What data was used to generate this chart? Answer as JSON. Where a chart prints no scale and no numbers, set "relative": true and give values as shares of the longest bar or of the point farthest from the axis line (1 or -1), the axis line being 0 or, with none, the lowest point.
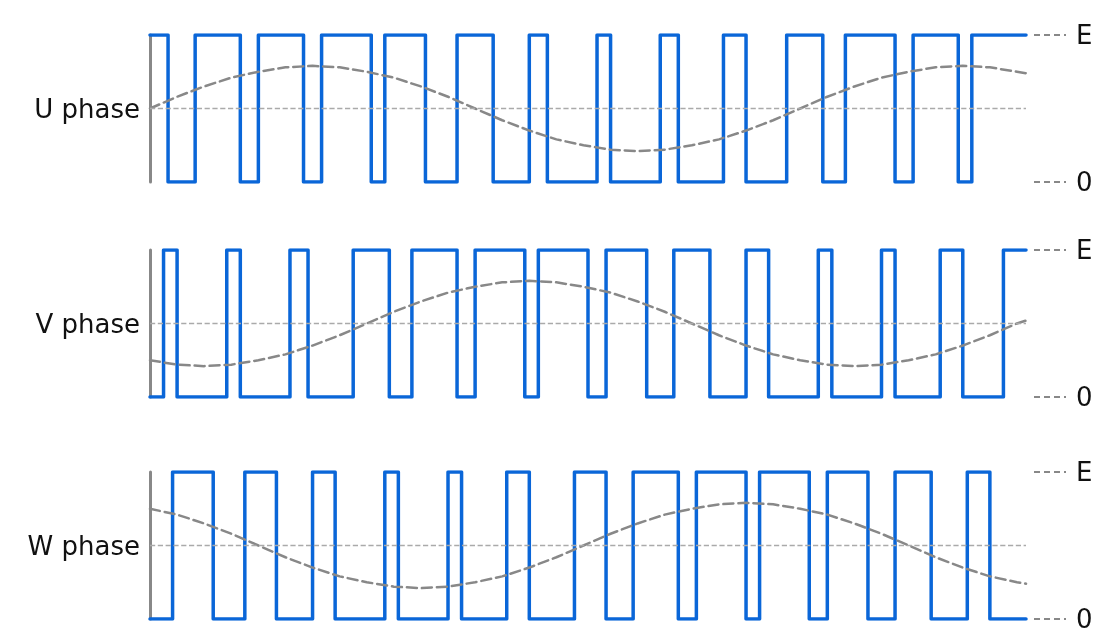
{
  "chart_data": [
    {
      "type": "step",
      "ylabel": "U phase",
      "relative": true,
      "annotations": [
        "E",
        "0"
      ],
      "categories": [
        null,
        null,
        null,
        null,
        null,
        null,
        null,
        null,
        null,
        null,
        null,
        null,
        null,
        null,
        null,
        null,
        null,
        null,
        null,
        null,
        null,
        null,
        null,
        null,
        null,
        null,
        null,
        null,
        null,
        null,
        null,
        null,
        null,
        null,
        null,
        null,
        null,
        null,
        null,
        null,
        null,
        null,
        null,
        null,
        null,
        null,
        null,
        null,
        null,
        null,
        null,
        null,
        null,
        null,
        null,
        null,
        null,
        null,
        null,
        null,
        null,
        null,
        null,
        null,
        null,
        null,
        null,
        null,
        null,
        null,
        null,
        null,
        null,
        null,
        null,
        null,
        null,
        null,
        null,
        null,
        null,
        null,
        null,
        null,
        null,
        null,
        null,
        null,
        null,
        null,
        null,
        null,
        null,
        null,
        null,
        null,
        null,
        null,
        null,
        null,
        null,
        null,
        null,
        null,
        null,
        null,
        null,
        null,
        null,
        null,
        null,
        null,
        null,
        null,
        null,
        null,
        null,
        null,
        null,
        null,
        null,
        null,
        null,
        null,
        null,
        null,
        null,
        null,
        null,
        null,
        null,
        null,
        null,
        null,
        null,
        null,
        null,
        null,
        null,
        null,
        null,
        null,
        null,
        null,
        null,
        null,
        null,
        null,
        null,
        null,
        null,
        null,
        null,
        null,
        null,
        null,
        null,
        null,
        null,
        null,
        null,
        null,
        null,
        null,
        null,
        null,
        null,
        null,
        null,
        null,
        null,
        null,
        null,
        null,
        null,
        null,
        null,
        null,
        null,
        null,
        null,
        null,
        null,
        null,
        null,
        null,
        null,
        null,
        null,
        null,
        null,
        null,
        null,
        null,
        null
      ],
      "ref_lines": [
        {
          "axis": "y",
          "value": 0.5,
          "color": "#aaaaaa",
          "line_style": "dashed"
        }
      ],
      "series": [
        {
          "color": "#0a66d8",
          "values": [
            1,
            1,
            1,
            1,
            0,
            0,
            0,
            0,
            0,
            0,
            1,
            1,
            1,
            1,
            1,
            1,
            1,
            1,
            1,
            1,
            0,
            0,
            0,
            0,
            1,
            1,
            1,
            1,
            1,
            1,
            1,
            1,
            1,
            1,
            0,
            0,
            0,
            0,
            1,
            1,
            1,
            1,
            1,
            1,
            1,
            1,
            1,
            1,
            1,
            0,
            0,
            0,
            1,
            1,
            1,
            1,
            1,
            1,
            1,
            1,
            1,
            0,
            0,
            0,
            0,
            0,
            0,
            0,
            1,
            1,
            1,
            1,
            1,
            1,
            1,
            1,
            0,
            0,
            0,
            0,
            0,
            0,
            0,
            0,
            1,
            1,
            1,
            1,
            0,
            0,
            0,
            0,
            0,
            0,
            0,
            0,
            0,
            0,
            0,
            1,
            1,
            1,
            0,
            0,
            0,
            0,
            0,
            0,
            0,
            0,
            0,
            0,
            0,
            1,
            1,
            1,
            1,
            0,
            0,
            0,
            0,
            0,
            0,
            0,
            0,
            0,
            0,
            1,
            1,
            1,
            1,
            1,
            0,
            0,
            0,
            0,
            0,
            0,
            0,
            0,
            0,
            1,
            1,
            1,
            1,
            1,
            1,
            1,
            1,
            0,
            0,
            0,
            0,
            0,
            1,
            1,
            1,
            1,
            1,
            1,
            1,
            1,
            1,
            1,
            1,
            0,
            0,
            0,
            0,
            1,
            1,
            1,
            1,
            1,
            1,
            1,
            1,
            1,
            1,
            0,
            0,
            0,
            1,
            1,
            1,
            1,
            1,
            1,
            1,
            1,
            1,
            1,
            1,
            1,
            1
          ]
        },
        {
          "type": "line",
          "color": "#888888",
          "line_style": "dashed",
          "values": [
            0.5,
            null,
            null,
            null,
            null,
            null,
            0.58,
            null,
            null,
            null,
            null,
            null,
            0.65,
            null,
            null,
            null,
            null,
            null,
            0.71,
            null,
            null,
            null,
            null,
            null,
            0.75,
            null,
            null,
            null,
            null,
            null,
            0.78,
            null,
            null,
            null,
            null,
            null,
            0.79,
            null,
            null,
            null,
            null,
            null,
            0.78,
            null,
            null,
            null,
            null,
            null,
            0.75,
            null,
            null,
            null,
            null,
            null,
            0.71,
            null,
            null,
            null,
            null,
            null,
            0.65,
            null,
            null,
            null,
            null,
            null,
            0.58,
            null,
            null,
            null,
            null,
            null,
            0.5,
            null,
            null,
            null,
            null,
            null,
            0.42,
            null,
            null,
            null,
            null,
            null,
            0.35,
            null,
            null,
            null,
            null,
            null,
            0.29,
            null,
            null,
            null,
            null,
            null,
            0.25,
            null,
            null,
            null,
            null,
            null,
            0.22,
            null,
            null,
            null,
            null,
            null,
            0.21,
            null,
            null,
            null,
            null,
            null,
            0.22,
            null,
            null,
            null,
            null,
            null,
            0.25,
            null,
            null,
            null,
            null,
            null,
            0.29,
            null,
            null,
            null,
            null,
            null,
            0.35,
            null,
            null,
            null,
            null,
            null,
            0.42,
            null,
            null,
            null,
            null,
            null,
            0.5,
            null,
            null,
            null,
            null,
            null,
            0.58,
            null,
            null,
            null,
            null,
            null,
            0.65,
            null,
            null,
            null,
            null,
            null,
            0.71,
            null,
            null,
            null,
            null,
            null,
            0.75,
            null,
            null,
            null,
            null,
            null,
            0.78,
            null,
            null,
            null,
            null,
            null,
            0.79,
            null,
            null,
            null,
            null,
            null,
            0.78,
            null,
            null,
            null,
            null,
            null,
            0.75,
            null,
            0.74
          ]
        }
      ]
    },
    {
      "type": "step",
      "ylabel": "V phase",
      "relative": true,
      "annotations": [
        "E",
        "0"
      ],
      "categories": [
        null,
        null,
        null,
        null,
        null,
        null,
        null,
        null,
        null,
        null,
        null,
        null,
        null,
        null,
        null,
        null,
        null,
        null,
        null,
        null,
        null,
        null,
        null,
        null,
        null,
        null,
        null,
        null,
        null,
        null,
        null,
        null,
        null,
        null,
        null,
        null,
        null,
        null,
        null,
        null,
        null,
        null,
        null,
        null,
        null,
        null,
        null,
        null,
        null,
        null,
        null,
        null,
        null,
        null,
        null,
        null,
        null,
        null,
        null,
        null,
        null,
        null,
        null,
        null,
        null,
        null,
        null,
        null,
        null,
        null,
        null,
        null,
        null,
        null,
        null,
        null,
        null,
        null,
        null,
        null,
        null,
        null,
        null,
        null,
        null,
        null,
        null,
        null,
        null,
        null,
        null,
        null,
        null,
        null,
        null,
        null,
        null,
        null,
        null,
        null,
        null,
        null,
        null,
        null,
        null,
        null,
        null,
        null,
        null,
        null,
        null,
        null,
        null,
        null,
        null,
        null,
        null,
        null,
        null,
        null,
        null,
        null,
        null,
        null,
        null,
        null,
        null,
        null,
        null,
        null,
        null,
        null,
        null,
        null,
        null,
        null,
        null,
        null,
        null,
        null,
        null,
        null,
        null,
        null,
        null,
        null,
        null,
        null,
        null,
        null,
        null,
        null,
        null,
        null,
        null,
        null,
        null,
        null,
        null,
        null,
        null,
        null,
        null,
        null,
        null,
        null,
        null,
        null,
        null,
        null,
        null,
        null,
        null,
        null,
        null,
        null,
        null,
        null,
        null,
        null,
        null,
        null,
        null,
        null,
        null,
        null,
        null,
        null,
        null,
        null,
        null,
        null,
        null,
        null,
        null
      ],
      "ref_lines": [
        {
          "axis": "y",
          "value": 0.5,
          "color": "#aaaaaa",
          "line_style": "dashed"
        }
      ],
      "series": [
        {
          "color": "#0a66d8",
          "values": [
            0,
            0,
            0,
            1,
            1,
            1,
            0,
            0,
            0,
            0,
            0,
            0,
            0,
            0,
            0,
            0,
            0,
            1,
            1,
            1,
            0,
            0,
            0,
            0,
            0,
            0,
            0,
            0,
            0,
            0,
            0,
            1,
            1,
            1,
            1,
            0,
            0,
            0,
            0,
            0,
            0,
            0,
            0,
            0,
            0,
            1,
            1,
            1,
            1,
            1,
            1,
            1,
            1,
            0,
            0,
            0,
            0,
            0,
            1,
            1,
            1,
            1,
            1,
            1,
            1,
            1,
            1,
            1,
            0,
            0,
            0,
            0,
            1,
            1,
            1,
            1,
            1,
            1,
            1,
            1,
            1,
            1,
            1,
            0,
            0,
            0,
            1,
            1,
            1,
            1,
            1,
            1,
            1,
            1,
            1,
            1,
            1,
            0,
            0,
            0,
            0,
            1,
            1,
            1,
            1,
            1,
            1,
            1,
            1,
            1,
            0,
            0,
            0,
            0,
            0,
            0,
            1,
            1,
            1,
            1,
            1,
            1,
            1,
            1,
            0,
            0,
            0,
            0,
            0,
            0,
            0,
            0,
            1,
            1,
            1,
            1,
            1,
            0,
            0,
            0,
            0,
            0,
            0,
            0,
            0,
            0,
            0,
            0,
            1,
            1,
            1,
            0,
            0,
            0,
            0,
            0,
            0,
            0,
            0,
            0,
            0,
            0,
            1,
            1,
            1,
            0,
            0,
            0,
            0,
            0,
            0,
            0,
            0,
            0,
            0,
            1,
            1,
            1,
            1,
            1,
            0,
            0,
            0,
            0,
            0,
            0,
            0,
            0,
            0,
            1,
            1,
            1,
            1,
            1,
            1
          ]
        },
        {
          "type": "line",
          "color": "#888888",
          "line_style": "dashed",
          "values": [
            0.25,
            null,
            null,
            null,
            null,
            null,
            0.22,
            null,
            null,
            null,
            null,
            null,
            0.21,
            null,
            null,
            null,
            null,
            null,
            0.22,
            null,
            null,
            null,
            null,
            null,
            0.25,
            null,
            null,
            null,
            null,
            null,
            0.29,
            null,
            null,
            null,
            null,
            null,
            0.35,
            null,
            null,
            null,
            null,
            null,
            0.42,
            null,
            null,
            null,
            null,
            null,
            0.5,
            null,
            null,
            null,
            null,
            null,
            0.58,
            null,
            null,
            null,
            null,
            null,
            0.65,
            null,
            null,
            null,
            null,
            null,
            0.71,
            null,
            null,
            null,
            null,
            null,
            0.75,
            null,
            null,
            null,
            null,
            null,
            0.78,
            null,
            null,
            null,
            null,
            null,
            0.79,
            null,
            null,
            null,
            null,
            null,
            0.78,
            null,
            null,
            null,
            null,
            null,
            0.75,
            null,
            null,
            null,
            null,
            null,
            0.71,
            null,
            null,
            null,
            null,
            null,
            0.65,
            null,
            null,
            null,
            null,
            null,
            0.58,
            null,
            null,
            null,
            null,
            null,
            0.5,
            null,
            null,
            null,
            null,
            null,
            0.42,
            null,
            null,
            null,
            null,
            null,
            0.35,
            null,
            null,
            null,
            null,
            null,
            0.29,
            null,
            null,
            null,
            null,
            null,
            0.25,
            null,
            null,
            null,
            null,
            null,
            0.22,
            null,
            null,
            null,
            null,
            null,
            0.21,
            null,
            null,
            null,
            null,
            null,
            0.22,
            null,
            null,
            null,
            null,
            null,
            0.25,
            null,
            null,
            null,
            null,
            null,
            0.29,
            null,
            null,
            null,
            null,
            null,
            0.35,
            null,
            null,
            null,
            null,
            null,
            0.42,
            null,
            null,
            null,
            null,
            null,
            0.5,
            null,
            0.52
          ]
        }
      ]
    },
    {
      "type": "step",
      "ylabel": "W phase",
      "relative": true,
      "annotations": [
        "E",
        "0"
      ],
      "categories": [
        null,
        null,
        null,
        null,
        null,
        null,
        null,
        null,
        null,
        null,
        null,
        null,
        null,
        null,
        null,
        null,
        null,
        null,
        null,
        null,
        null,
        null,
        null,
        null,
        null,
        null,
        null,
        null,
        null,
        null,
        null,
        null,
        null,
        null,
        null,
        null,
        null,
        null,
        null,
        null,
        null,
        null,
        null,
        null,
        null,
        null,
        null,
        null,
        null,
        null,
        null,
        null,
        null,
        null,
        null,
        null,
        null,
        null,
        null,
        null,
        null,
        null,
        null,
        null,
        null,
        null,
        null,
        null,
        null,
        null,
        null,
        null,
        null,
        null,
        null,
        null,
        null,
        null,
        null,
        null,
        null,
        null,
        null,
        null,
        null,
        null,
        null,
        null,
        null,
        null,
        null,
        null,
        null,
        null,
        null,
        null,
        null,
        null,
        null,
        null,
        null,
        null,
        null,
        null,
        null,
        null,
        null,
        null,
        null,
        null,
        null,
        null,
        null,
        null,
        null,
        null,
        null,
        null,
        null,
        null,
        null,
        null,
        null,
        null,
        null,
        null,
        null,
        null,
        null,
        null,
        null,
        null,
        null,
        null,
        null,
        null,
        null,
        null,
        null,
        null,
        null,
        null,
        null,
        null,
        null,
        null,
        null,
        null,
        null,
        null,
        null,
        null,
        null,
        null,
        null,
        null,
        null,
        null,
        null,
        null,
        null,
        null,
        null,
        null,
        null,
        null,
        null,
        null,
        null,
        null,
        null,
        null,
        null,
        null,
        null,
        null,
        null,
        null,
        null,
        null,
        null,
        null,
        null,
        null,
        null,
        null,
        null,
        null,
        null,
        null,
        null,
        null,
        null,
        null,
        null
      ],
      "ref_lines": [
        {
          "axis": "y",
          "value": 0.5,
          "color": "#aaaaaa",
          "line_style": "dashed"
        }
      ],
      "series": [
        {
          "color": "#0a66d8",
          "values": [
            0,
            0,
            0,
            0,
            0,
            1,
            1,
            1,
            1,
            1,
            1,
            1,
            1,
            1,
            0,
            0,
            0,
            0,
            0,
            0,
            0,
            1,
            1,
            1,
            1,
            1,
            1,
            1,
            0,
            0,
            0,
            0,
            0,
            0,
            0,
            0,
            1,
            1,
            1,
            1,
            1,
            0,
            0,
            0,
            0,
            0,
            0,
            0,
            0,
            0,
            0,
            0,
            1,
            1,
            1,
            0,
            0,
            0,
            0,
            0,
            0,
            0,
            0,
            0,
            0,
            0,
            1,
            1,
            1,
            0,
            0,
            0,
            0,
            0,
            0,
            0,
            0,
            0,
            0,
            1,
            1,
            1,
            1,
            1,
            0,
            0,
            0,
            0,
            0,
            0,
            0,
            0,
            0,
            0,
            1,
            1,
            1,
            1,
            1,
            1,
            1,
            0,
            0,
            0,
            0,
            0,
            0,
            1,
            1,
            1,
            1,
            1,
            1,
            1,
            1,
            1,
            1,
            0,
            0,
            0,
            0,
            1,
            1,
            1,
            1,
            1,
            1,
            1,
            1,
            1,
            1,
            1,
            0,
            0,
            0,
            1,
            1,
            1,
            1,
            1,
            1,
            1,
            1,
            1,
            1,
            1,
            0,
            0,
            0,
            0,
            1,
            1,
            1,
            1,
            1,
            1,
            1,
            1,
            1,
            0,
            0,
            0,
            0,
            0,
            0,
            1,
            1,
            1,
            1,
            1,
            1,
            1,
            1,
            0,
            0,
            0,
            0,
            0,
            0,
            0,
            0,
            1,
            1,
            1,
            1,
            1,
            0,
            0,
            0,
            0,
            0,
            0,
            0,
            0,
            0
          ]
        },
        {
          "type": "line",
          "color": "#888888",
          "line_style": "dashed",
          "values": [
            0.75,
            null,
            null,
            null,
            null,
            null,
            0.71,
            null,
            null,
            null,
            null,
            null,
            0.65,
            null,
            null,
            null,
            null,
            null,
            0.58,
            null,
            null,
            null,
            null,
            null,
            0.5,
            null,
            null,
            null,
            null,
            null,
            0.42,
            null,
            null,
            null,
            null,
            null,
            0.35,
            null,
            null,
            null,
            null,
            null,
            0.29,
            null,
            null,
            null,
            null,
            null,
            0.25,
            null,
            null,
            null,
            null,
            null,
            0.22,
            null,
            null,
            null,
            null,
            null,
            0.21,
            null,
            null,
            null,
            null,
            null,
            0.22,
            null,
            null,
            null,
            null,
            null,
            0.25,
            null,
            null,
            null,
            null,
            null,
            0.29,
            null,
            null,
            null,
            null,
            null,
            0.35,
            null,
            null,
            null,
            null,
            null,
            0.42,
            null,
            null,
            null,
            null,
            null,
            0.5,
            null,
            null,
            null,
            null,
            null,
            0.58,
            null,
            null,
            null,
            null,
            null,
            0.65,
            null,
            null,
            null,
            null,
            null,
            0.71,
            null,
            null,
            null,
            null,
            null,
            0.75,
            null,
            null,
            null,
            null,
            null,
            0.78,
            null,
            null,
            null,
            null,
            null,
            0.79,
            null,
            null,
            null,
            null,
            null,
            0.78,
            null,
            null,
            null,
            null,
            null,
            0.75,
            null,
            null,
            null,
            null,
            null,
            0.71,
            null,
            null,
            null,
            null,
            null,
            0.65,
            null,
            null,
            null,
            null,
            null,
            0.58,
            null,
            null,
            null,
            null,
            null,
            0.5,
            null,
            null,
            null,
            null,
            null,
            0.42,
            null,
            null,
            null,
            null,
            null,
            0.35,
            null,
            null,
            null,
            null,
            null,
            0.29,
            null,
            null,
            null,
            null,
            null,
            0.25,
            null,
            0.24
          ]
        }
      ]
    }
  ]
}
